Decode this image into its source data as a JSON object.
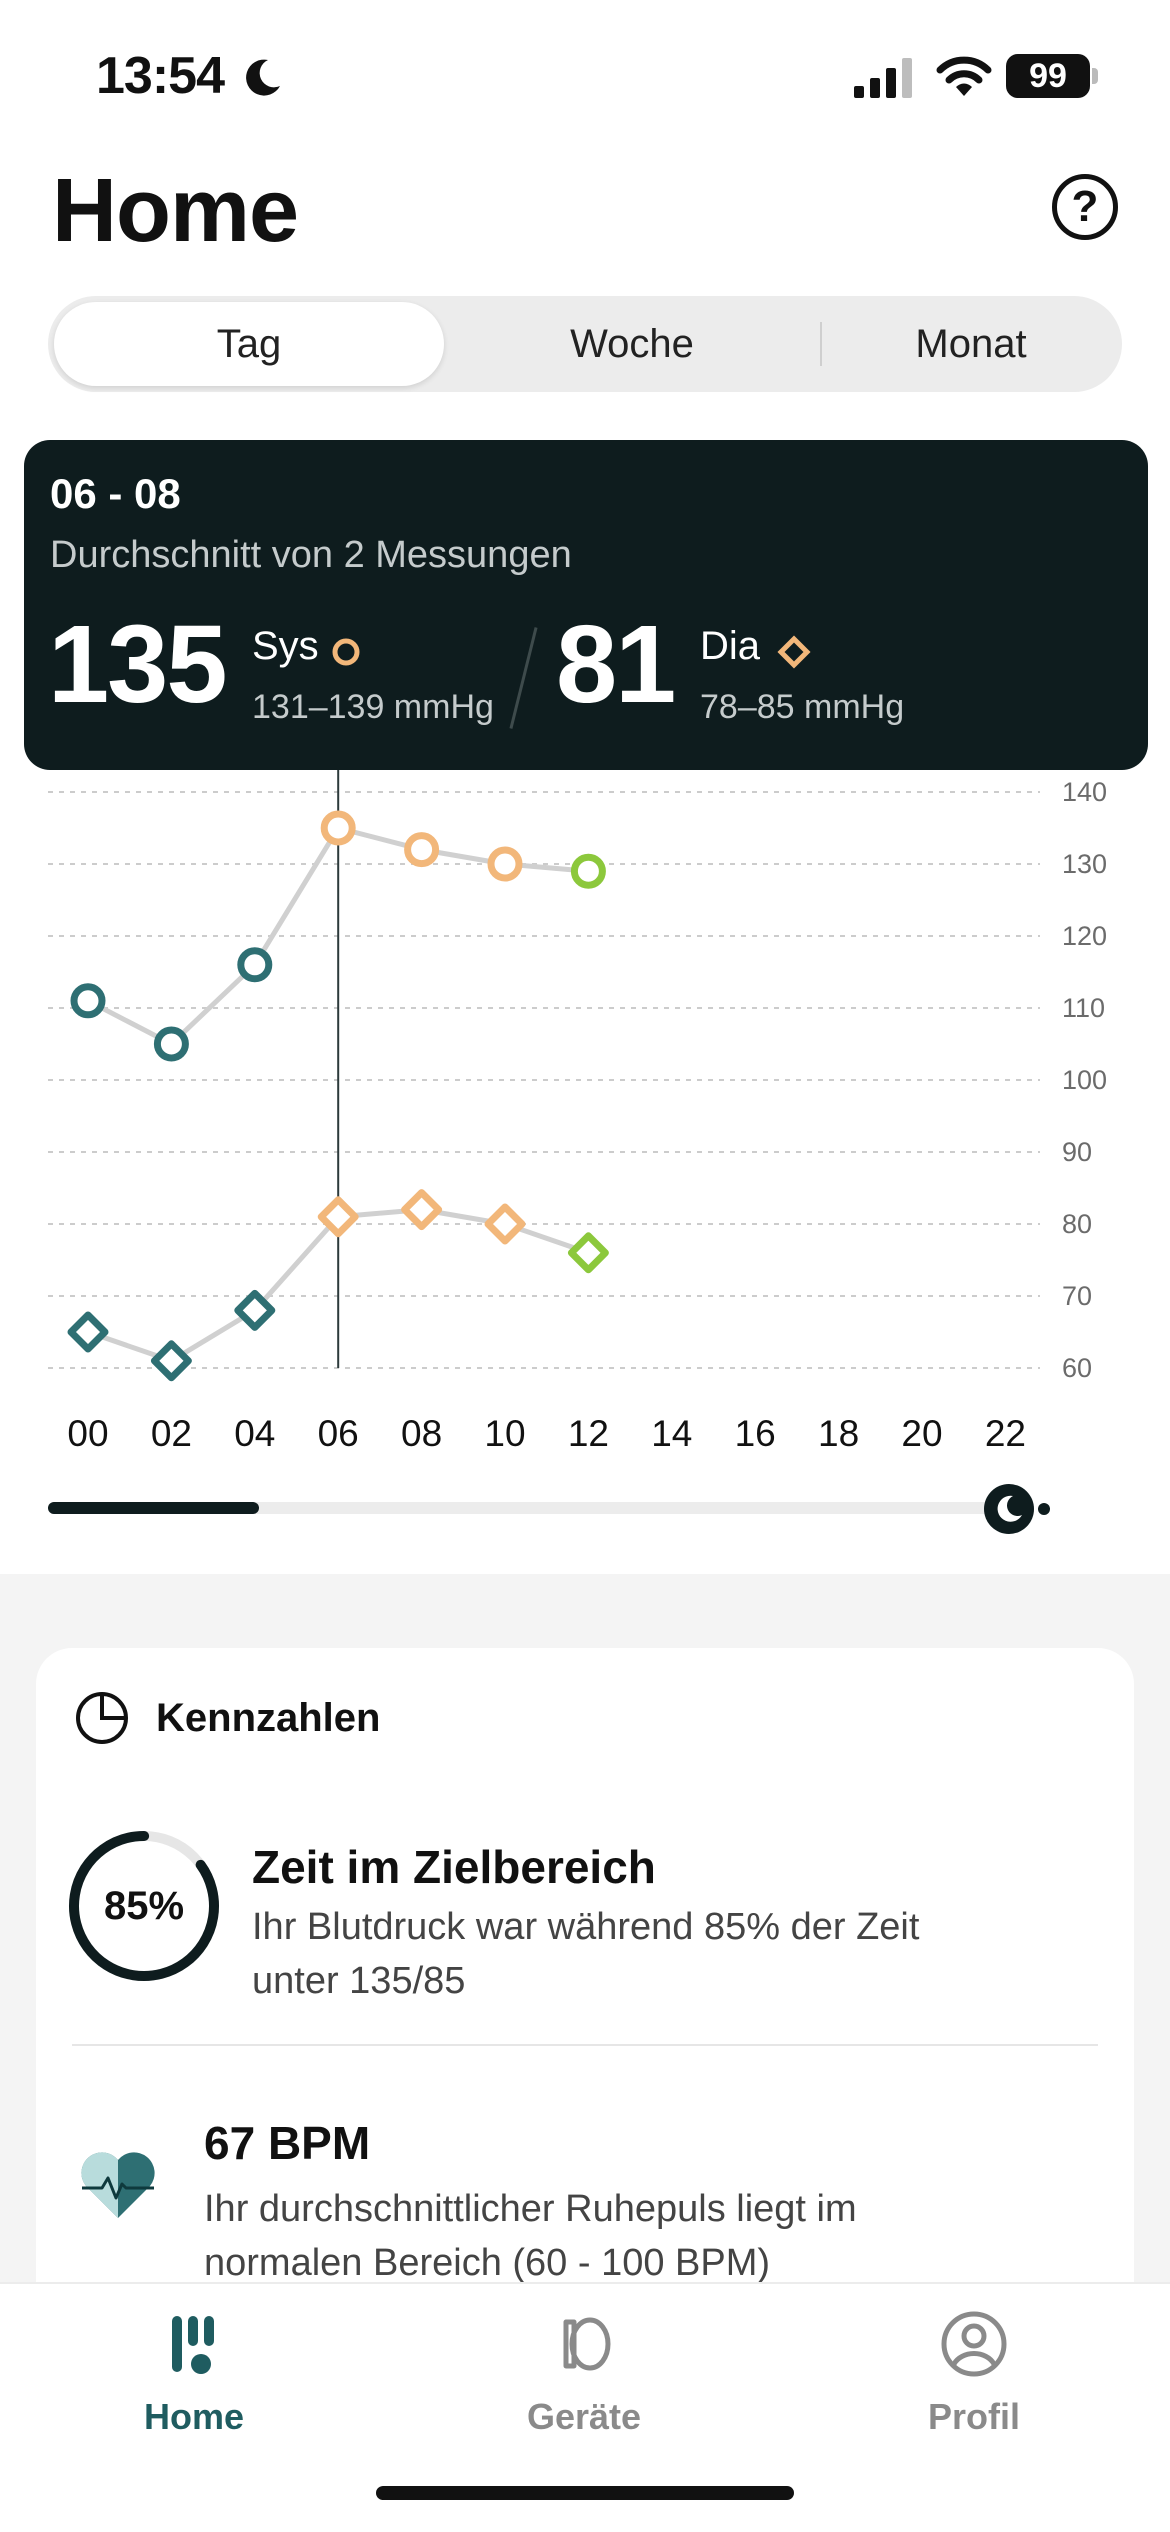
{
  "status_bar": {
    "time": "13:54",
    "battery": "99"
  },
  "header": {
    "title": "Home",
    "help_symbol": "?"
  },
  "tabs": [
    {
      "label": "Tag",
      "active": true
    },
    {
      "label": "Woche",
      "active": false
    },
    {
      "label": "Monat",
      "active": false
    }
  ],
  "summary": {
    "time_range": "06 - 08",
    "subtitle": "Durchschnitt von 2 Messungen",
    "systolic": {
      "value": "135",
      "label": "Sys",
      "range": "131–139 mmHg"
    },
    "diastolic": {
      "value": "81",
      "label": "Dia",
      "range": "78–85 mmHg"
    }
  },
  "chart_data": {
    "type": "line",
    "x_tick_labels": [
      "00",
      "02",
      "04",
      "06",
      "08",
      "10",
      "12",
      "14",
      "16",
      "18",
      "20",
      "22"
    ],
    "y_tick_labels": [
      "140",
      "130",
      "120",
      "110",
      "100",
      "90",
      "80",
      "70",
      "60"
    ],
    "ylim": [
      60,
      140
    ],
    "xlim": [
      0,
      22
    ],
    "grid": true,
    "selected_x": 6,
    "series": [
      {
        "marker": "circle",
        "x": [
          0,
          2,
          4,
          6,
          8,
          10,
          12
        ],
        "values": [
          111,
          105,
          116,
          135,
          132,
          130,
          129
        ],
        "colors": [
          "#2e6f73",
          "#2e6f73",
          "#2e6f73",
          "#f2b77a",
          "#f2b77a",
          "#f2b77a",
          "#8cc83c"
        ]
      },
      {
        "marker": "diamond",
        "x": [
          0,
          2,
          4,
          6,
          8,
          10,
          12
        ],
        "values": [
          65,
          61,
          68,
          81,
          82,
          80,
          76
        ],
        "colors": [
          "#2e6f73",
          "#2e6f73",
          "#2e6f73",
          "#f2b77a",
          "#f2b77a",
          "#f2b77a",
          "#8cc83c"
        ]
      }
    ],
    "colors": {
      "line": "#d0d0d0",
      "grid": "#cccccc",
      "cursor": "#2c3a3b",
      "normal": "#2e6f73",
      "elevated": "#f2b77a",
      "latest": "#8cc83c"
    }
  },
  "slider": {
    "progress": 0.22
  },
  "kennzahlen": {
    "title": "Kennzahlen",
    "target": {
      "percent": "85%",
      "fraction": 0.85,
      "title": "Zeit im Zielbereich",
      "desc_line1": "Ihr Blutdruck war während 85% der Zeit",
      "desc_line2": "unter 135/85"
    },
    "pulse": {
      "title": "67 BPM",
      "desc_line1": "Ihr durchschnittlicher Ruhepuls liegt im",
      "desc_line2": "normalen Bereich (60 - 100 BPM)"
    }
  },
  "nav": {
    "items": [
      {
        "label": "Home",
        "icon": "home-bars-icon",
        "active": true
      },
      {
        "label": "Geräte",
        "icon": "device-cuff-icon",
        "active": false
      },
      {
        "label": "Profil",
        "icon": "profile-icon",
        "active": false
      }
    ],
    "active_color": "#1f5c60",
    "inactive_color": "#8a8a8a"
  }
}
